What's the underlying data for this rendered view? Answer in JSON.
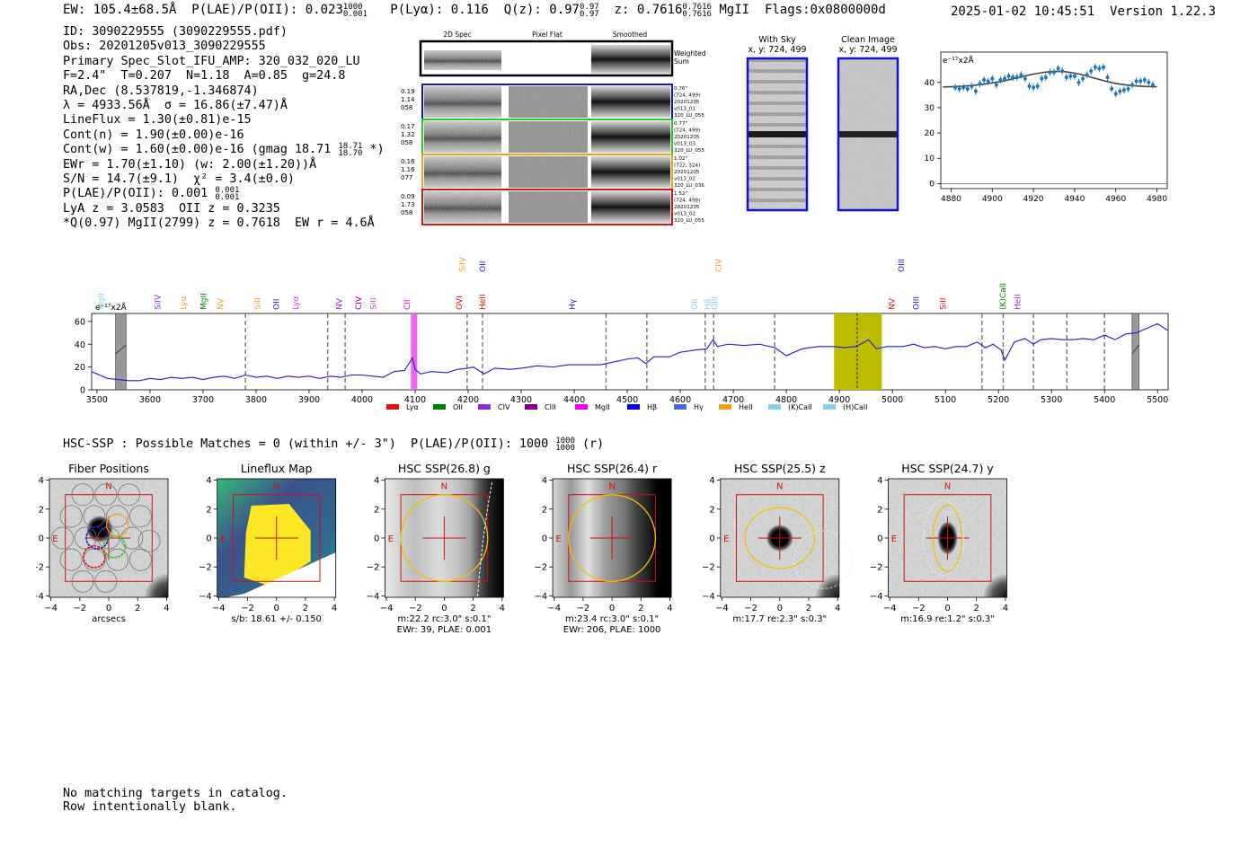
{
  "header": {
    "ew_label": "EW: 105.4±68.5Å",
    "plae_label": "P(LAE)/P(OII): 0.023",
    "plae_hi": "1000",
    "plae_lo": "0.001",
    "plya_label": "P(Lyα): 0.116",
    "qz_label": "Q(z): 0.97",
    "qz_hi": "0.97",
    "qz_lo": "0.97",
    "z_label": "z: 0.7616",
    "z_hi": "0.7616",
    "z_lo": "0.7616",
    "line_label": "MgII",
    "flags": "Flags:0x0800000d",
    "datetime": "2025-01-02 10:45:51",
    "version": "Version 1.22.3"
  },
  "info": {
    "id": "ID: 3090229555 (3090229555.pdf)",
    "obs": "Obs: 20201205v013_3090229555",
    "slot": "Primary Spec_Slot_IFU_AMP: 320_032_020_LU",
    "fwhm": "F=2.4\"  T=0.207  N=1.18  A=0.85  g=24.8",
    "radec": "RA,Dec (8.537819,-1.346874)",
    "lambda": "λ = 4933.56Å  σ = 16.86(±7.47)Å",
    "lineflux": "LineFlux = 1.30(±0.81)e-15",
    "contn": "Cont(n) = 1.90(±0.00)e-16",
    "contw": "Cont(w) = 1.60(±0.00)e-16 (gmag 18.71",
    "contw_hi": "18.71",
    "contw_lo": "18.70",
    "contw_tail": " *)",
    "ewr": "EWr = 1.70(±1.10) (w: 2.00(±1.20))Å",
    "sn": "S/N = 14.7(±9.1)  χ² = 3.4(±0.0)",
    "plae": "P(LAE)/P(OII): 0.001",
    "plae_hi": "0.001",
    "plae_lo": "0.001",
    "lya": "LyA z = 3.0583  OII z = 0.3235",
    "q": "*Q(0.97) MgII(2799) z = 0.7618  EW r = 4.6Å"
  },
  "cutouts": {
    "col_2d": "2D Spec",
    "col_flat": "Pixel Flat",
    "col_smooth": "Smoothed",
    "weighted": "Weighted",
    "sum": "Sum",
    "rows": [
      {
        "left": [
          "0.19",
          "1.14",
          "058"
        ],
        "right": [
          "0.76\"",
          "(724, 499)",
          "20201205",
          "v013_01",
          "320_LU_055"
        ],
        "color": "#1010d0"
      },
      {
        "left": [
          "0.17",
          "1.32",
          "058"
        ],
        "right": [
          "0.77\"",
          "(724, 499)",
          "20201205",
          "v013_03",
          "320_LU_055"
        ],
        "color": "#22cc22"
      },
      {
        "left": [
          "0.16",
          "1.16",
          "077"
        ],
        "right": [
          "1.02\"",
          "(722, 324)",
          "20201205",
          "v013_02",
          "320_LU_036"
        ],
        "color": "#f0a020"
      },
      {
        "left": [
          "0.09",
          "1.73",
          "058"
        ],
        "right": [
          "1.52\"",
          "(724, 499)",
          "20201205",
          "v013_02",
          "320_LU_055"
        ],
        "color": "#e01010"
      }
    ]
  },
  "sky": {
    "with_sky": "With Sky",
    "with_sky_xy": "x, y: 724, 499",
    "clean": "Clean Image",
    "clean_xy": "x, y: 724, 499"
  },
  "zoom_chart": {
    "type": "scatter",
    "unit_label": "e⁻¹⁷x2Å",
    "xlim": [
      4875,
      4985
    ],
    "ylim": [
      -2,
      52
    ],
    "xticks": [
      "4880",
      "4900",
      "4920",
      "4940",
      "4960",
      "4980"
    ],
    "yticks": [
      "0",
      "10",
      "20",
      "30",
      "40"
    ],
    "x": [
      4882,
      4884,
      4886,
      4888,
      4890,
      4892,
      4894,
      4896,
      4898,
      4900,
      4902,
      4904,
      4906,
      4908,
      4910,
      4912,
      4914,
      4916,
      4918,
      4920,
      4922,
      4924,
      4926,
      4928,
      4930,
      4932,
      4934,
      4936,
      4938,
      4940,
      4942,
      4944,
      4946,
      4948,
      4950,
      4952,
      4954,
      4956,
      4958,
      4960,
      4962,
      4964,
      4966,
      4968,
      4970,
      4972,
      4974,
      4976,
      4978
    ],
    "y": [
      38,
      37.5,
      38,
      37.5,
      38.5,
      36.5,
      39.5,
      41,
      40.5,
      41.5,
      39,
      41,
      41.5,
      42.5,
      42,
      42,
      43,
      41.5,
      38.5,
      38,
      38.5,
      41.5,
      42,
      44,
      44,
      45.5,
      44.5,
      42,
      42.5,
      42.5,
      40,
      41.5,
      43,
      44.5,
      46,
      45.5,
      46,
      42,
      37.5,
      35.5,
      36.5,
      37,
      37.5,
      39,
      40.5,
      40.5,
      41,
      40,
      39
    ],
    "model_x": [
      4876,
      4880,
      4885,
      4890,
      4895,
      4900,
      4905,
      4910,
      4915,
      4920,
      4925,
      4930,
      4935,
      4940,
      4945,
      4950,
      4955,
      4960,
      4965,
      4970,
      4975,
      4980
    ],
    "model_y": [
      38.2,
      38.3,
      38.5,
      38.8,
      39.2,
      39.8,
      40.5,
      41.4,
      42.4,
      43.3,
      44,
      44.4,
      44.3,
      43.7,
      42.8,
      41.6,
      40.5,
      39.6,
      39,
      38.6,
      38.4,
      38.3
    ]
  },
  "spectrum": {
    "type": "line",
    "unit_label": "e⁻¹⁷x2Å",
    "xlim": [
      3490,
      5520
    ],
    "ylim": [
      0,
      67
    ],
    "xticks": [
      "3500",
      "3600",
      "3700",
      "3800",
      "3900",
      "4000",
      "4100",
      "4200",
      "4300",
      "4400",
      "4500",
      "4600",
      "4700",
      "4800",
      "4900",
      "5000",
      "5100",
      "5200",
      "5300",
      "5400",
      "5500"
    ],
    "yticks": [
      "0",
      "20",
      "40",
      "60"
    ],
    "x": [
      3490,
      3520,
      3540,
      3560,
      3580,
      3600,
      3620,
      3640,
      3660,
      3680,
      3700,
      3720,
      3740,
      3760,
      3780,
      3800,
      3820,
      3840,
      3860,
      3880,
      3900,
      3920,
      3940,
      3960,
      3980,
      4000,
      4020,
      4040,
      4060,
      4080,
      4095,
      4100,
      4110,
      4130,
      4160,
      4180,
      4200,
      4210,
      4230,
      4250,
      4280,
      4300,
      4330,
      4360,
      4390,
      4420,
      4450,
      4470,
      4500,
      4520,
      4535,
      4550,
      4580,
      4600,
      4630,
      4650,
      4662,
      4670,
      4690,
      4720,
      4750,
      4778,
      4800,
      4830,
      4860,
      4890,
      4910,
      4930,
      4940,
      4955,
      4970,
      4990,
      5020,
      5040,
      5060,
      5080,
      5100,
      5120,
      5140,
      5160,
      5175,
      5190,
      5205,
      5212,
      5230,
      5250,
      5266,
      5280,
      5300,
      5320,
      5340,
      5360,
      5380,
      5400,
      5420,
      5440,
      5460,
      5480,
      5500,
      5520
    ],
    "y": [
      16,
      10,
      9,
      8,
      8,
      10,
      9,
      11,
      10,
      11,
      9,
      11,
      12,
      10,
      13,
      11,
      12,
      10,
      12,
      11,
      12,
      10,
      12,
      11,
      13,
      13,
      12,
      11,
      16,
      17,
      28,
      18,
      14,
      16,
      15,
      18,
      19,
      20,
      14,
      19,
      18,
      19,
      21,
      20,
      22,
      22,
      22,
      24,
      27,
      28,
      23,
      29,
      29,
      33,
      35,
      36,
      44,
      38,
      40,
      39,
      40,
      37,
      30,
      36,
      38,
      38,
      37,
      38,
      40,
      44,
      36,
      38,
      38,
      40,
      37,
      38,
      36,
      38,
      38,
      42,
      37,
      40,
      35,
      26,
      42,
      45,
      40,
      44,
      45,
      44,
      44,
      45,
      44,
      48,
      44,
      49,
      50,
      54,
      58,
      52
    ],
    "vlines": [
      3780,
      3935,
      3968,
      4198,
      4227,
      4460,
      4537,
      4647,
      4663,
      4778,
      5169,
      5209,
      5266,
      5329,
      5400
    ],
    "shaded_gray": [
      [
        3535,
        3555
      ],
      [
        5452,
        5465
      ]
    ],
    "shaded_magenta": [
      4092,
      4104
    ],
    "shaded_olive": [
      4890,
      4980
    ],
    "center_line": 4933.56,
    "top_labels": [
      {
        "text": "SiIV",
        "x": 4194,
        "color": "#f0a020"
      },
      {
        "text": "OII",
        "x": 4232,
        "color": "#2020e0"
      },
      {
        "text": "CIV",
        "x": 4677,
        "color": "#f0a020"
      },
      {
        "text": "OIII",
        "x": 5022,
        "color": "#2020e0"
      }
    ],
    "labels": [
      {
        "text": "MgII",
        "x": 3513,
        "color": "#87ceeb"
      },
      {
        "text": "SiIV",
        "x": 3620,
        "color": "#8a2be2"
      },
      {
        "text": "Lyα",
        "x": 3668,
        "color": "#f0a020"
      },
      {
        "text": "MgII",
        "x": 3706,
        "color": "#008000"
      },
      {
        "text": "NV",
        "x": 3738,
        "color": "#f0a020"
      },
      {
        "text": "SiII",
        "x": 3808,
        "color": "#f0a020"
      },
      {
        "text": "OII",
        "x": 3843,
        "color": "#2020e0"
      },
      {
        "text": "Lyα",
        "x": 3880,
        "color": "#cc44cc"
      },
      {
        "text": "NV",
        "x": 3962,
        "color": "#8a2be2"
      },
      {
        "text": "CIV",
        "x": 3998,
        "color": "#800080"
      },
      {
        "text": "SiII",
        "x": 4026,
        "color": "#cc44cc"
      },
      {
        "text": "CII",
        "x": 4090,
        "color": "#ee00ee"
      },
      {
        "text": "OVI",
        "x": 4188,
        "color": "#e01010"
      },
      {
        "text": "HeII",
        "x": 4232,
        "color": "#e01010"
      },
      {
        "text": "Hγ",
        "x": 4402,
        "color": "#2020e0"
      },
      {
        "text": "OII",
        "x": 4632,
        "color": "#87ceeb"
      },
      {
        "text": "Hβ",
        "x": 4657,
        "color": "#87ceeb"
      },
      {
        "text": "OIII",
        "x": 4669,
        "color": "#87ceeb"
      },
      {
        "text": "NV",
        "x": 5004,
        "color": "#e01010"
      },
      {
        "text": "OIII",
        "x": 5050,
        "color": "#2020e0"
      },
      {
        "text": "SiII",
        "x": 5101,
        "color": "#e01010"
      },
      {
        "text": "(K)CaII",
        "x": 5213,
        "color": "#008000"
      },
      {
        "text": "HeII",
        "x": 5241,
        "color": "#8a2be2"
      }
    ],
    "legend": [
      {
        "text": "Lyα",
        "color": "#e01010"
      },
      {
        "text": "OII",
        "color": "#008000"
      },
      {
        "text": "CIV",
        "color": "#8a2be2"
      },
      {
        "text": "CIII",
        "color": "#800080"
      },
      {
        "text": "MgII",
        "color": "#ee00ee"
      },
      {
        "text": "Hβ",
        "color": "#0000ee"
      },
      {
        "text": "Hγ",
        "color": "#4169e1"
      },
      {
        "text": "HeII",
        "color": "#f0a020"
      },
      {
        "text": "(K)CaII",
        "color": "#87ceeb"
      },
      {
        "text": "(H)CaII",
        "color": "#87ceeb"
      }
    ]
  },
  "hsc": {
    "summary": "HSC-SSP : Possible Matches = 0 (within +/- 3\")  P(LAE)/P(OII): 1000",
    "summary_hi": "1000",
    "summary_lo": "1000",
    "summary_tail": " (r)"
  },
  "stamps": [
    {
      "title": "Fiber Positions",
      "cap1": "arcsecs",
      "cap2": ""
    },
    {
      "title": "Lineflux Map",
      "cap1": "s/b: 18.61 +/- 0.150",
      "cap2": ""
    },
    {
      "title": "HSC SSP(26.8) g",
      "cap1": "m:22.2 rc:3.0\"  s:0.1\"",
      "cap2": "EWr: 39, PLAE: 0.001"
    },
    {
      "title": "HSC SSP(26.4) r",
      "cap1": "m:23.4 rc:3.0\"  s:0.1\"",
      "cap2": "EWr: 206, PLAE: 1000"
    },
    {
      "title": "HSC SSP(25.5) z",
      "cap1": "m:17.7  re:2.3\"  s:0.3\"",
      "cap2": ""
    },
    {
      "title": "HSC SSP(24.7) y",
      "cap1": "m:16.9  re:1.2\"  s:0.3\"",
      "cap2": ""
    }
  ],
  "stamp_axes": {
    "ticks": [
      "−4",
      "−2",
      "0",
      "2",
      "4"
    ],
    "north": "N",
    "east": "E"
  },
  "footer": {
    "line1": "No matching targets in catalog.",
    "line2": "Row intentionally blank."
  },
  "colors": {
    "spectrum": "#1a1ad8",
    "zoom_points": "#1f77b4",
    "box": "#d01010",
    "aperture": "#f0c000"
  }
}
